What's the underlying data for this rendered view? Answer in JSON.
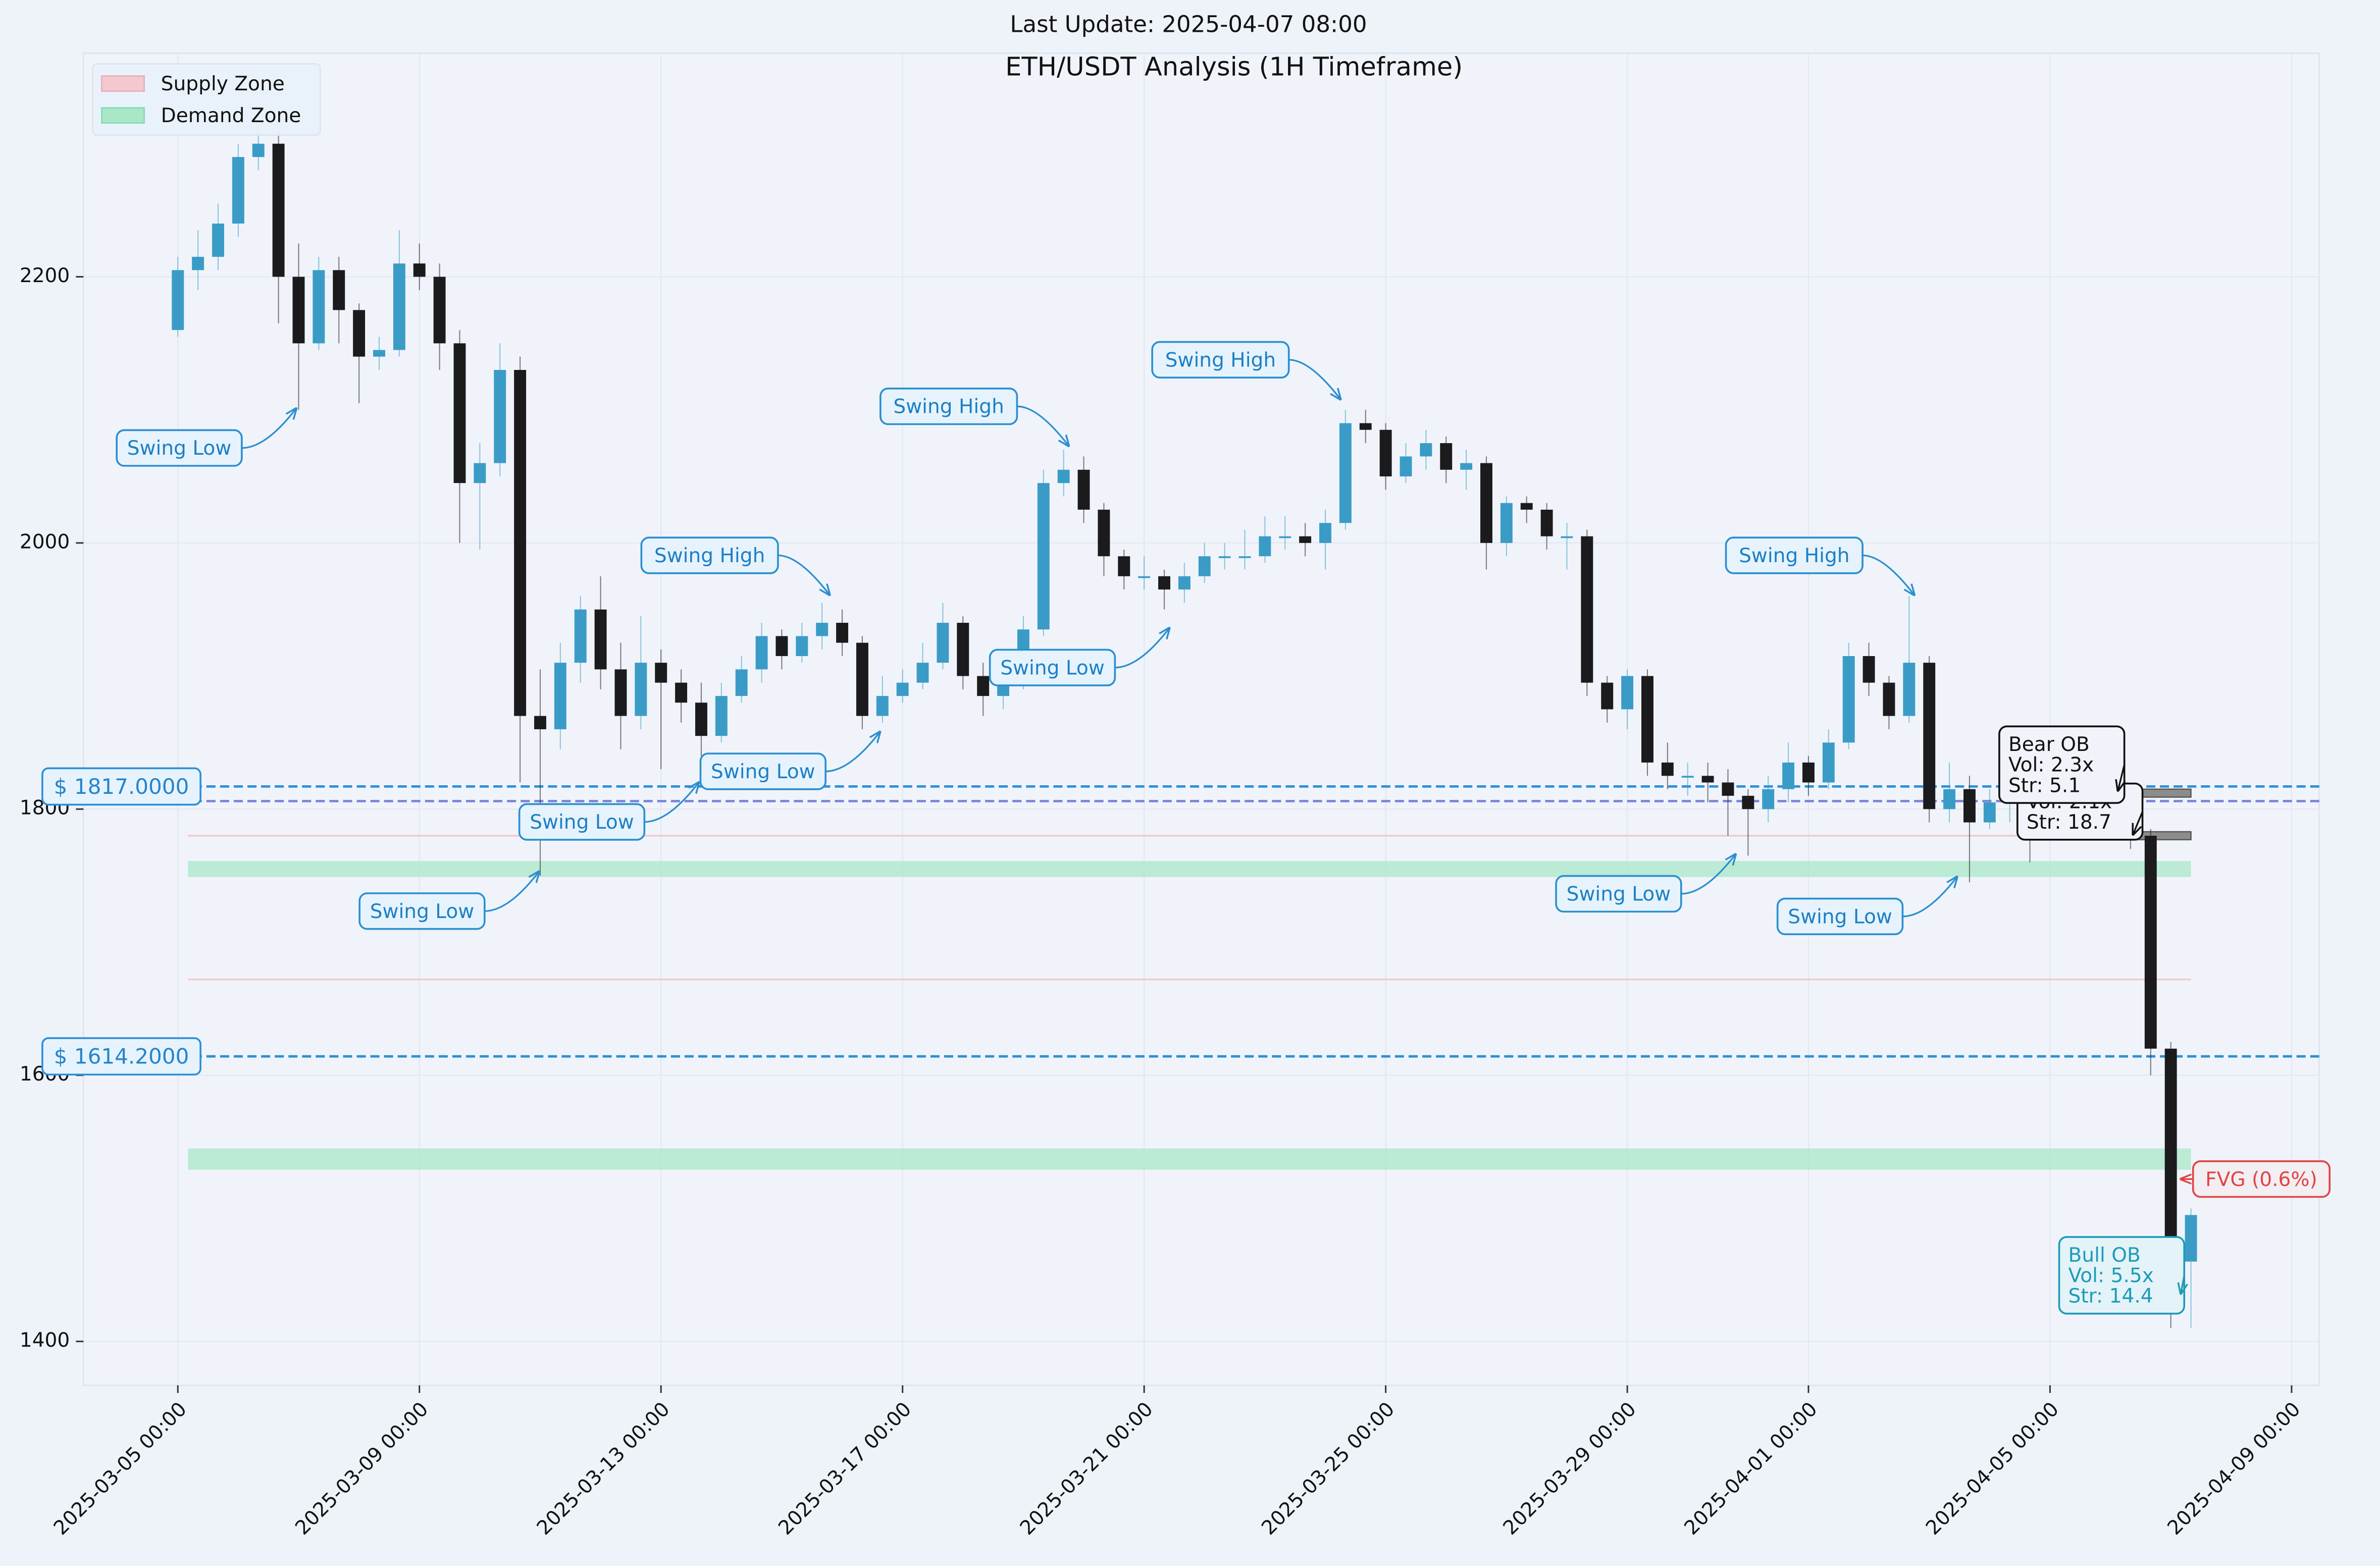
{
  "chart_data": {
    "type": "candlestick",
    "subtitle": "Last Update: 2025-04-07 08:00",
    "title": "ETH/USDT Analysis (1H Timeframe)",
    "x": [
      "2025-03-05 00:00",
      "2025-03-05 08:00",
      "2025-03-05 16:00",
      "2025-03-06 00:00",
      "2025-03-06 08:00",
      "2025-03-06 16:00",
      "2025-03-07 00:00",
      "2025-03-07 08:00",
      "2025-03-07 16:00",
      "2025-03-08 00:00",
      "2025-03-08 08:00",
      "2025-03-08 16:00",
      "2025-03-09 00:00",
      "2025-03-09 08:00",
      "2025-03-09 16:00",
      "2025-03-10 00:00",
      "2025-03-10 08:00",
      "2025-03-10 16:00",
      "2025-03-11 00:00",
      "2025-03-11 08:00",
      "2025-03-11 16:00",
      "2025-03-12 00:00",
      "2025-03-12 08:00",
      "2025-03-12 16:00",
      "2025-03-13 00:00",
      "2025-03-13 08:00",
      "2025-03-13 16:00",
      "2025-03-14 00:00",
      "2025-03-14 08:00",
      "2025-03-14 16:00",
      "2025-03-15 00:00",
      "2025-03-15 08:00",
      "2025-03-15 16:00",
      "2025-03-16 00:00",
      "2025-03-16 08:00",
      "2025-03-16 16:00",
      "2025-03-17 00:00",
      "2025-03-17 08:00",
      "2025-03-17 16:00",
      "2025-03-18 00:00",
      "2025-03-18 08:00",
      "2025-03-18 16:00",
      "2025-03-19 00:00",
      "2025-03-19 08:00",
      "2025-03-19 16:00",
      "2025-03-20 00:00",
      "2025-03-20 08:00",
      "2025-03-20 16:00",
      "2025-03-21 00:00",
      "2025-03-21 08:00",
      "2025-03-21 16:00",
      "2025-03-22 00:00",
      "2025-03-22 08:00",
      "2025-03-22 16:00",
      "2025-03-23 00:00",
      "2025-03-23 08:00",
      "2025-03-23 16:00",
      "2025-03-24 00:00",
      "2025-03-24 08:00",
      "2025-03-24 16:00",
      "2025-03-25 00:00",
      "2025-03-25 08:00",
      "2025-03-25 16:00",
      "2025-03-26 00:00",
      "2025-03-26 08:00",
      "2025-03-26 16:00",
      "2025-03-27 00:00",
      "2025-03-27 08:00",
      "2025-03-27 16:00",
      "2025-03-28 00:00",
      "2025-03-28 08:00",
      "2025-03-28 16:00",
      "2025-03-29 00:00",
      "2025-03-29 08:00",
      "2025-03-29 16:00",
      "2025-03-30 00:00",
      "2025-03-30 08:00",
      "2025-03-30 16:00",
      "2025-03-31 00:00",
      "2025-03-31 08:00",
      "2025-03-31 16:00",
      "2025-04-01 00:00",
      "2025-04-01 08:00",
      "2025-04-01 16:00",
      "2025-04-02 00:00",
      "2025-04-02 08:00",
      "2025-04-02 16:00",
      "2025-04-03 00:00",
      "2025-04-03 08:00",
      "2025-04-03 16:00",
      "2025-04-04 00:00",
      "2025-04-04 08:00",
      "2025-04-04 16:00",
      "2025-04-05 00:00",
      "2025-04-05 08:00",
      "2025-04-05 16:00",
      "2025-04-06 00:00",
      "2025-04-06 08:00",
      "2025-04-06 16:00",
      "2025-04-07 00:00",
      "2025-04-07 08:00"
    ],
    "open": [
      2160,
      2205,
      2215,
      2240,
      2290,
      2300,
      2200,
      2150,
      2205,
      2175,
      2140,
      2145,
      2210,
      2200,
      2150,
      2045,
      2060,
      2130,
      1870,
      1860,
      1910,
      1950,
      1905,
      1870,
      1910,
      1895,
      1880,
      1855,
      1885,
      1905,
      1930,
      1915,
      1930,
      1940,
      1925,
      1870,
      1885,
      1895,
      1910,
      1940,
      1900,
      1885,
      1895,
      1935,
      2045,
      2055,
      2025,
      1990,
      1975,
      1975,
      1965,
      1975,
      1990,
      1990,
      1990,
      2005,
      2005,
      2000,
      2015,
      2090,
      2085,
      2050,
      2065,
      2075,
      2055,
      2060,
      2000,
      2030,
      2025,
      2005,
      2005,
      1895,
      1875,
      1900,
      1835,
      1825,
      1825,
      1820,
      1810,
      1800,
      1815,
      1835,
      1820,
      1850,
      1915,
      1895,
      1870,
      1910,
      1800,
      1815,
      1790,
      1805,
      1815,
      1800,
      1810,
      1810,
      1800,
      1800,
      1780,
      1620,
      1460
    ],
    "high": [
      2215,
      2235,
      2255,
      2300,
      2315,
      2310,
      2225,
      2215,
      2215,
      2180,
      2155,
      2235,
      2225,
      2210,
      2160,
      2075,
      2150,
      2140,
      1905,
      1925,
      1960,
      1975,
      1925,
      1945,
      1920,
      1905,
      1895,
      1895,
      1915,
      1940,
      1935,
      1940,
      1955,
      1950,
      1930,
      1900,
      1905,
      1925,
      1955,
      1945,
      1910,
      1905,
      1945,
      2055,
      2070,
      2065,
      2030,
      1995,
      1990,
      1980,
      1985,
      2000,
      2000,
      2010,
      2020,
      2020,
      2015,
      2025,
      2100,
      2100,
      2090,
      2075,
      2085,
      2080,
      2070,
      2065,
      2035,
      2035,
      2030,
      2015,
      2010,
      1900,
      1905,
      1905,
      1850,
      1835,
      1835,
      1830,
      1815,
      1825,
      1850,
      1840,
      1860,
      1925,
      1925,
      1900,
      1960,
      1915,
      1835,
      1825,
      1815,
      1820,
      1820,
      1820,
      1820,
      1815,
      1810,
      1805,
      1785,
      1625,
      1500
    ],
    "low": [
      2155,
      2190,
      2205,
      2230,
      2280,
      2165,
      2100,
      2145,
      2150,
      2105,
      2130,
      2140,
      2190,
      2130,
      2000,
      1995,
      2050,
      1820,
      1750,
      1845,
      1895,
      1890,
      1845,
      1860,
      1830,
      1865,
      1840,
      1850,
      1880,
      1895,
      1905,
      1910,
      1920,
      1915,
      1860,
      1865,
      1880,
      1890,
      1905,
      1890,
      1870,
      1875,
      1890,
      1930,
      2035,
      2015,
      1975,
      1965,
      1965,
      1950,
      1955,
      1970,
      1980,
      1980,
      1985,
      1995,
      1990,
      1980,
      2010,
      2075,
      2040,
      2045,
      2055,
      2045,
      2040,
      1980,
      1990,
      2015,
      1995,
      1980,
      1885,
      1865,
      1860,
      1825,
      1815,
      1810,
      1805,
      1780,
      1765,
      1790,
      1805,
      1810,
      1815,
      1845,
      1885,
      1860,
      1865,
      1790,
      1790,
      1745,
      1785,
      1790,
      1760,
      1795,
      1800,
      1790,
      1785,
      1770,
      1600,
      1410,
      1410
    ],
    "close": [
      2205,
      2215,
      2240,
      2290,
      2300,
      2200,
      2150,
      2205,
      2175,
      2140,
      2145,
      2210,
      2200,
      2150,
      2045,
      2060,
      2130,
      1870,
      1860,
      1910,
      1950,
      1905,
      1870,
      1910,
      1895,
      1880,
      1855,
      1885,
      1905,
      1930,
      1915,
      1930,
      1940,
      1925,
      1870,
      1885,
      1895,
      1910,
      1940,
      1900,
      1885,
      1895,
      1935,
      2045,
      2055,
      2025,
      1990,
      1975,
      1975,
      1965,
      1975,
      1990,
      1990,
      1990,
      2005,
      2005,
      2000,
      2015,
      2090,
      2085,
      2050,
      2065,
      2075,
      2055,
      2060,
      2000,
      2030,
      2025,
      2005,
      2005,
      1895,
      1875,
      1900,
      1835,
      1825,
      1825,
      1820,
      1810,
      1800,
      1815,
      1835,
      1820,
      1850,
      1915,
      1895,
      1870,
      1910,
      1800,
      1815,
      1790,
      1805,
      1815,
      1800,
      1810,
      1810,
      1800,
      1800,
      1780,
      1620,
      1460,
      1495
    ],
    "up_color": "#3a9cc6",
    "down_color": "#1b1b1d",
    "xlim": [
      "2025-03-03 10:30",
      "2025-04-09 11:00"
    ],
    "xticks": [
      "2025-03-05 00:00",
      "2025-03-09 00:00",
      "2025-03-13 00:00",
      "2025-03-17 00:00",
      "2025-03-21 00:00",
      "2025-03-25 00:00",
      "2025-03-29 00:00",
      "2025-04-01 00:00",
      "2025-04-05 00:00",
      "2025-04-09 00:00"
    ],
    "ylim": [
      1367,
      2368
    ],
    "yticks": [
      1400,
      1600,
      1800,
      2000,
      2200
    ],
    "grid": true,
    "legend_corner": "upper left",
    "legend": [
      {
        "name": "Supply Zone",
        "color": "#f3c9cf"
      },
      {
        "name": "Demand Zone",
        "color": "#a9e7c8"
      }
    ],
    "zone_start": "2025-03-05 04:00",
    "zone_end": "2025-04-07 08:00",
    "supply_levels": [
      1780,
      1672
    ],
    "demand_zones": [
      {
        "low": 1749,
        "high": 1761
      },
      {
        "low": 1529,
        "high": 1545
      }
    ],
    "levels": [
      {
        "value": 1817,
        "label": "$ 1817.0000"
      },
      {
        "value": 1806
      },
      {
        "value": 1614.2,
        "label": "$ 1614.2000"
      }
    ],
    "order_blocks": [
      {
        "top": 1815,
        "bottom": 1809,
        "start": "2025-04-04 18:00"
      },
      {
        "top": 1783,
        "bottom": 1777,
        "start": "2025-04-06 06:00"
      }
    ],
    "annotations": [
      {
        "text": "Swing Low",
        "x": "2025-03-06 23:00",
        "y": 2101
      },
      {
        "text": "Swing Low",
        "x": "2025-03-10 23:30",
        "y": 1753
      },
      {
        "text": "Swing Low",
        "x": "2025-03-13 15:00",
        "y": 1820
      },
      {
        "text": "Swing High",
        "x": "2025-03-15 19:00",
        "y": 1961
      },
      {
        "text": "Swing Low",
        "x": "2025-03-16 15:00",
        "y": 1858
      },
      {
        "text": "Swing High",
        "x": "2025-03-19 18:00",
        "y": 2073
      },
      {
        "text": "Swing Low",
        "x": "2025-03-21 10:00",
        "y": 1936
      },
      {
        "text": "Swing High",
        "x": "2025-03-24 06:00",
        "y": 2108
      },
      {
        "text": "Swing High",
        "x": "2025-04-02 18:00",
        "y": 1961
      },
      {
        "text": "Swing Low",
        "x": "2025-03-30 19:00",
        "y": 1766
      },
      {
        "text": "Swing Low",
        "x": "2025-04-03 11:00",
        "y": 1749
      }
    ],
    "ob_annotations": [
      {
        "lines": [
          "Vol: 2.1x",
          "Str: 18.7"
        ],
        "x": "2025-04-06 09:00",
        "y": 1781
      },
      {
        "lines": [
          "Bear OB",
          "Vol: 2.3x",
          "Str: 5.1"
        ],
        "x": "2025-04-06 03:00",
        "y": 1814
      },
      {
        "lines": [
          "Bull OB",
          "Vol: 5.5x",
          "Str: 14.4"
        ],
        "x": "2025-04-07 04:00",
        "y": 1436
      },
      {
        "lines": [
          "FVG (0.6%)"
        ],
        "x": "2025-04-07 04:00",
        "y": 1522
      }
    ]
  }
}
